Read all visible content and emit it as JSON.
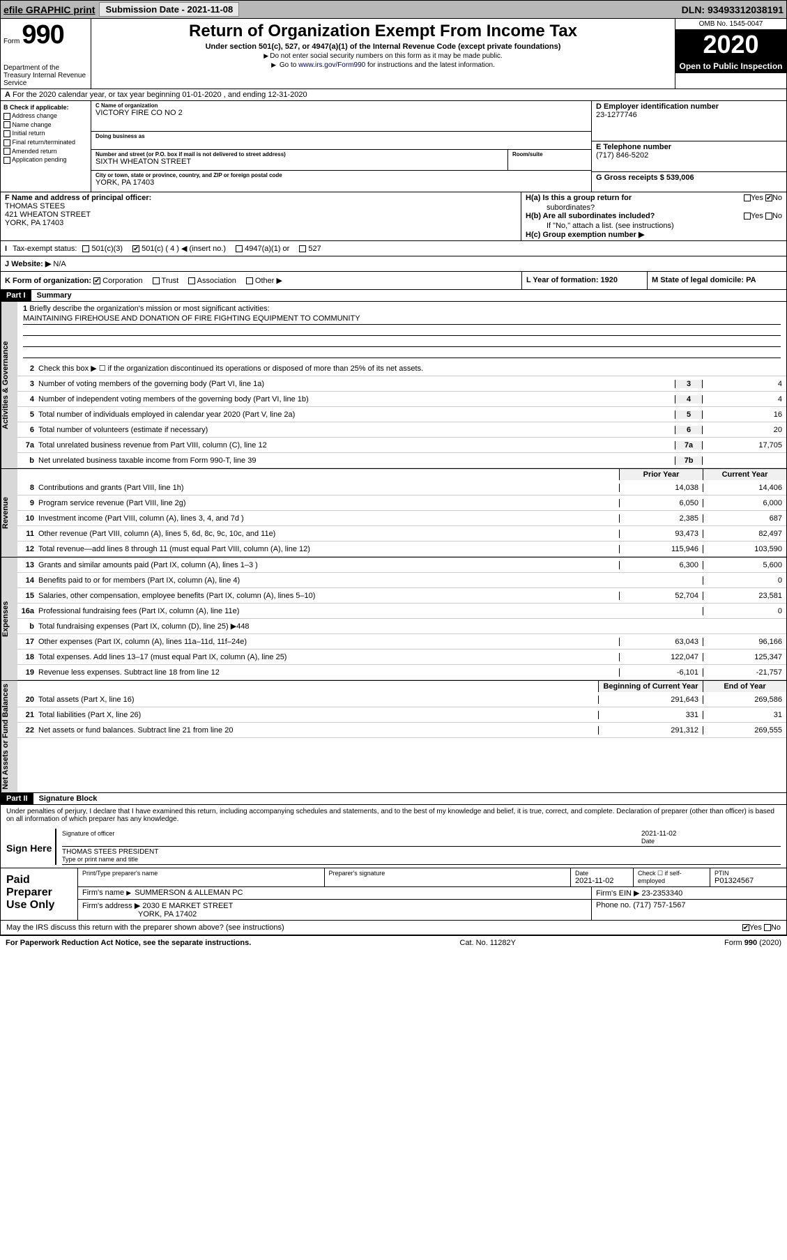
{
  "topbar": {
    "efile": "efile GRAPHIC print",
    "submission_label": "Submission Date - 2021-11-08",
    "dln_label": "DLN: 93493312038191"
  },
  "header": {
    "form_label": "Form",
    "form_number": "990",
    "dept": "Department of the Treasury\nInternal Revenue Service",
    "title": "Return of Organization Exempt From Income Tax",
    "subtitle": "Under section 501(c), 527, or 4947(a)(1) of the Internal Revenue Code (except private foundations)",
    "note1": "Do not enter social security numbers on this form as it may be made public.",
    "note2_prefix": "Go to ",
    "note2_link": "www.irs.gov/Form990",
    "note2_suffix": " for instructions and the latest information.",
    "omb": "OMB No. 1545-0047",
    "year": "2020",
    "open_public": "Open to Public Inspection"
  },
  "row_a": "For the 2020 calendar year, or tax year beginning 01-01-2020   , and ending 12-31-2020",
  "col_b": {
    "header": "B Check if applicable:",
    "opts": [
      "Address change",
      "Name change",
      "Initial return",
      "Final return/terminated",
      "Amended return",
      "Application pending"
    ]
  },
  "col_c": {
    "name_label": "C Name of organization",
    "name": "VICTORY FIRE CO NO 2",
    "dba_label": "Doing business as",
    "addr_label": "Number and street (or P.O. box if mail is not delivered to street address)",
    "addr": "SIXTH WHEATON STREET",
    "room_label": "Room/suite",
    "city_label": "City or town, state or province, country, and ZIP or foreign postal code",
    "city": "YORK, PA  17403"
  },
  "col_d": {
    "label": "D Employer identification number",
    "val": "23-1277746"
  },
  "col_e": {
    "label": "E Telephone number",
    "val": "(717) 846-5202"
  },
  "col_g": {
    "label": "G Gross receipts $ 539,006"
  },
  "col_f": {
    "label": "F Name and address of principal officer:",
    "name": "THOMAS STEES",
    "addr": "421 WHEATON STREET",
    "city": "YORK, PA  17403"
  },
  "col_h": {
    "a_label": "H(a)  Is this a group return for",
    "a_sub": "subordinates?",
    "b_label": "H(b)  Are all subordinates included?",
    "b_note": "If \"No,\" attach a list. (see instructions)",
    "c_label": "H(c)  Group exemption number ▶",
    "yes": "Yes",
    "no": "No"
  },
  "tax_status": {
    "label": "Tax-exempt status:",
    "opts": [
      "501(c)(3)",
      "501(c) ( 4 ) ◀ (insert no.)",
      "4947(a)(1) or",
      "527"
    ],
    "checked_index": 1
  },
  "website": {
    "label_j": "J",
    "label": "Website: ▶",
    "val": "N/A"
  },
  "row_k": {
    "label": "K Form of organization:",
    "opts": [
      "Corporation",
      "Trust",
      "Association",
      "Other ▶"
    ],
    "checked_index": 0
  },
  "row_l": {
    "label": "L Year of formation: 1920"
  },
  "row_m": {
    "label": "M State of legal domicile: PA"
  },
  "part1": {
    "label": "Part I",
    "title": "Summary"
  },
  "mission": {
    "num": "1",
    "label": "Briefly describe the organization's mission or most significant activities:",
    "text": "MAINTAINING FIREHOUSE AND DONATION OF FIRE FIGHTING EQUIPMENT TO COMMUNITY"
  },
  "lines_gov": [
    {
      "num": "2",
      "text": "Check this box ▶ ☐  if the organization discontinued its operations or disposed of more than 25% of its net assets."
    },
    {
      "num": "3",
      "text": "Number of voting members of the governing body (Part VI, line 1a)",
      "box": "3",
      "val": "4"
    },
    {
      "num": "4",
      "text": "Number of independent voting members of the governing body (Part VI, line 1b)",
      "box": "4",
      "val": "4"
    },
    {
      "num": "5",
      "text": "Total number of individuals employed in calendar year 2020 (Part V, line 2a)",
      "box": "5",
      "val": "16"
    },
    {
      "num": "6",
      "text": "Total number of volunteers (estimate if necessary)",
      "box": "6",
      "val": "20"
    },
    {
      "num": "7a",
      "text": "Total unrelated business revenue from Part VIII, column (C), line 12",
      "box": "7a",
      "val": "17,705"
    },
    {
      "num": "b",
      "text": "Net unrelated business taxable income from Form 990-T, line 39",
      "box": "7b",
      "val": ""
    }
  ],
  "col_headers": {
    "prior": "Prior Year",
    "current": "Current Year"
  },
  "lines_rev": [
    {
      "num": "8",
      "text": "Contributions and grants (Part VIII, line 1h)",
      "prior": "14,038",
      "current": "14,406"
    },
    {
      "num": "9",
      "text": "Program service revenue (Part VIII, line 2g)",
      "prior": "6,050",
      "current": "6,000"
    },
    {
      "num": "10",
      "text": "Investment income (Part VIII, column (A), lines 3, 4, and 7d )",
      "prior": "2,385",
      "current": "687"
    },
    {
      "num": "11",
      "text": "Other revenue (Part VIII, column (A), lines 5, 6d, 8c, 9c, 10c, and 11e)",
      "prior": "93,473",
      "current": "82,497"
    },
    {
      "num": "12",
      "text": "Total revenue—add lines 8 through 11 (must equal Part VIII, column (A), line 12)",
      "prior": "115,946",
      "current": "103,590"
    }
  ],
  "lines_exp": [
    {
      "num": "13",
      "text": "Grants and similar amounts paid (Part IX, column (A), lines 1–3 )",
      "prior": "6,300",
      "current": "5,600"
    },
    {
      "num": "14",
      "text": "Benefits paid to or for members (Part IX, column (A), line 4)",
      "prior": "",
      "current": "0"
    },
    {
      "num": "15",
      "text": "Salaries, other compensation, employee benefits (Part IX, column (A), lines 5–10)",
      "prior": "52,704",
      "current": "23,581"
    },
    {
      "num": "16a",
      "text": "Professional fundraising fees (Part IX, column (A), line 11e)",
      "prior": "",
      "current": "0"
    },
    {
      "num": "b",
      "text": "Total fundraising expenses (Part IX, column (D), line 25) ▶448",
      "prior": "gray",
      "current": "gray"
    },
    {
      "num": "17",
      "text": "Other expenses (Part IX, column (A), lines 11a–11d, 11f–24e)",
      "prior": "63,043",
      "current": "96,166"
    },
    {
      "num": "18",
      "text": "Total expenses. Add lines 13–17 (must equal Part IX, column (A), line 25)",
      "prior": "122,047",
      "current": "125,347"
    },
    {
      "num": "19",
      "text": "Revenue less expenses. Subtract line 18 from line 12",
      "prior": "-6,101",
      "current": "-21,757"
    }
  ],
  "col_headers2": {
    "prior": "Beginning of Current Year",
    "current": "End of Year"
  },
  "lines_net": [
    {
      "num": "20",
      "text": "Total assets (Part X, line 16)",
      "prior": "291,643",
      "current": "269,586"
    },
    {
      "num": "21",
      "text": "Total liabilities (Part X, line 26)",
      "prior": "331",
      "current": "31"
    },
    {
      "num": "22",
      "text": "Net assets or fund balances. Subtract line 21 from line 20",
      "prior": "291,312",
      "current": "269,555"
    }
  ],
  "vtabs": {
    "gov": "Activities & Governance",
    "rev": "Revenue",
    "exp": "Expenses",
    "net": "Net Assets or Fund Balances"
  },
  "part2": {
    "label": "Part II",
    "title": "Signature Block"
  },
  "sig_declaration": "Under penalties of perjury, I declare that I have examined this return, including accompanying schedules and statements, and to the best of my knowledge and belief, it is true, correct, and complete. Declaration of preparer (other than officer) is based on all information of which preparer has any knowledge.",
  "sign_here": {
    "label": "Sign Here",
    "sig_label": "Signature of officer",
    "date_label": "Date",
    "date_val": "2021-11-02",
    "name": "THOMAS STEES  PRESIDENT",
    "name_label": "Type or print name and title"
  },
  "paid_prep": {
    "label": "Paid Preparer Use Only",
    "headers": [
      "Print/Type preparer's name",
      "Preparer's signature",
      "Date",
      "Check ☐ if self-employed",
      "PTIN"
    ],
    "date": "2021-11-02",
    "ptin": "P01324567",
    "firm_name_label": "Firm's name",
    "firm_name": "SUMMERSON & ALLEMAN PC",
    "firm_ein_label": "Firm's EIN ▶ 23-2353340",
    "firm_addr_label": "Firm's address ▶",
    "firm_addr": "2030 E MARKET STREET",
    "firm_city": "YORK, PA  17402",
    "phone_label": "Phone no. (717) 757-1567"
  },
  "discuss": {
    "text": "May the IRS discuss this return with the preparer shown above? (see instructions)",
    "yes": "Yes",
    "no": "No"
  },
  "footer": {
    "left": "For Paperwork Reduction Act Notice, see the separate instructions.",
    "mid": "Cat. No. 11282Y",
    "right": "Form 990 (2020)"
  }
}
